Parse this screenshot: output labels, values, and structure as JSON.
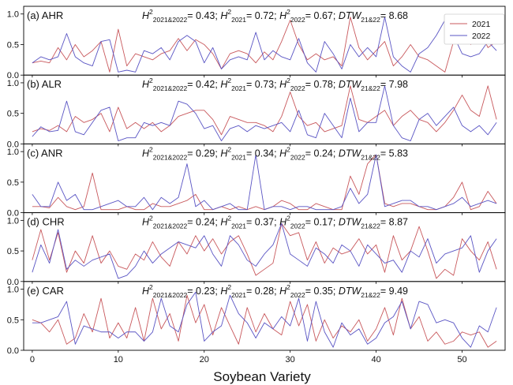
{
  "colors": {
    "series_2021": "#c8585c",
    "series_2022": "#5a55c4"
  },
  "chart_data": {
    "type": "line",
    "xlabel": "Soybean Variety",
    "xlim": [
      -1,
      55
    ],
    "xticks": [
      0,
      10,
      20,
      30,
      40,
      50
    ],
    "ylim": [
      0,
      1.1
    ],
    "yticks": [
      "0.0",
      "0.5",
      "1.0"
    ],
    "legend": {
      "placement": "top-right",
      "entries": [
        "2021",
        "2022"
      ]
    },
    "panels": [
      {
        "label": "(a) AHR",
        "stats": {
          "h2_both": "0.43",
          "h2_2021": "0.72",
          "h2_2022": "0.67",
          "dtw": "8.68"
        },
        "series": [
          {
            "name": "2021",
            "values": [
              0.2,
              0.23,
              0.2,
              0.45,
              0.25,
              0.5,
              0.3,
              0.4,
              0.55,
              0.05,
              0.75,
              0.15,
              0.35,
              0.3,
              0.25,
              0.35,
              0.4,
              0.6,
              0.4,
              0.58,
              0.5,
              0.35,
              0.1,
              0.35,
              0.4,
              0.35,
              0.2,
              0.38,
              0.25,
              0.55,
              0.9,
              0.5,
              0.25,
              0.35,
              0.25,
              0.3,
              0.15,
              0.95,
              0.45,
              0.25,
              0.4,
              0.55,
              0.15,
              0.3,
              0.5,
              0.3,
              0.25,
              0.15,
              0.05,
              0.55,
              0.9,
              0.5,
              0.75,
              0.45,
              0.55
            ]
          },
          {
            "name": "2022",
            "values": [
              0.2,
              0.3,
              0.25,
              0.3,
              0.68,
              0.3,
              0.2,
              0.15,
              0.55,
              0.58,
              0.05,
              0.08,
              0.05,
              0.4,
              0.35,
              0.45,
              0.25,
              0.55,
              0.65,
              0.55,
              0.2,
              0.45,
              0.1,
              0.25,
              0.3,
              0.25,
              0.7,
              0.25,
              0.4,
              0.3,
              0.25,
              0.6,
              0.2,
              0.05,
              0.55,
              0.35,
              0.1,
              0.5,
              0.3,
              0.45,
              0.3,
              0.95,
              0.3,
              0.15,
              0.05,
              0.35,
              0.45,
              0.65,
              0.9,
              0.65,
              0.35,
              0.3,
              0.35,
              0.55,
              0.4
            ]
          }
        ]
      },
      {
        "label": "(b) ALR",
        "stats": {
          "h2_both": "0.42",
          "h2_2021": "0.73",
          "h2_2022": "0.78",
          "dtw": "7.98"
        },
        "series": [
          {
            "name": "2021",
            "values": [
              0.2,
              0.25,
              0.22,
              0.3,
              0.2,
              0.45,
              0.35,
              0.4,
              0.5,
              0.2,
              0.6,
              0.25,
              0.35,
              0.25,
              0.35,
              0.2,
              0.3,
              0.45,
              0.5,
              0.55,
              0.55,
              0.4,
              0.15,
              0.45,
              0.4,
              0.35,
              0.35,
              0.3,
              0.2,
              0.45,
              0.85,
              0.45,
              0.3,
              0.35,
              0.2,
              0.25,
              0.3,
              0.95,
              0.4,
              0.35,
              0.45,
              0.55,
              0.3,
              0.45,
              0.55,
              0.4,
              0.35,
              0.2,
              0.35,
              0.55,
              0.8,
              0.55,
              0.45,
              0.95,
              0.4
            ]
          },
          {
            "name": "2022",
            "values": [
              0.12,
              0.28,
              0.2,
              0.22,
              0.7,
              0.2,
              0.15,
              0.35,
              0.55,
              0.6,
              0.05,
              0.1,
              0.1,
              0.35,
              0.3,
              0.35,
              0.3,
              0.7,
              0.65,
              0.5,
              0.25,
              0.3,
              0.05,
              0.25,
              0.3,
              0.2,
              0.3,
              0.25,
              0.3,
              0.35,
              0.2,
              0.55,
              0.15,
              0.1,
              0.5,
              0.3,
              0.1,
              0.75,
              0.2,
              0.35,
              0.35,
              0.95,
              0.3,
              0.1,
              0.05,
              0.4,
              0.5,
              0.3,
              0.45,
              0.6,
              0.3,
              0.2,
              0.3,
              0.15,
              0.35
            ]
          }
        ]
      },
      {
        "label": "(c) ANR",
        "stats": {
          "h2_both": "0.29",
          "h2_2021": "0.34",
          "h2_2022": "0.24",
          "dtw": "5.83"
        },
        "series": [
          {
            "name": "2021",
            "values": [
              0.1,
              0.1,
              0.08,
              0.25,
              0.1,
              0.05,
              0.1,
              0.65,
              0.05,
              0.05,
              0.05,
              0.1,
              0.05,
              0.05,
              0.15,
              0.1,
              0.1,
              0.15,
              0.2,
              0.3,
              0.05,
              0.05,
              0.1,
              0.05,
              0.1,
              0.05,
              0.1,
              0.05,
              0.1,
              0.2,
              0.15,
              0.05,
              0.05,
              0.15,
              0.1,
              0.05,
              0.05,
              0.6,
              0.3,
              0.8,
              0.95,
              0.15,
              0.1,
              0.15,
              0.15,
              0.1,
              0.05,
              0.05,
              0.1,
              0.25,
              0.5,
              0.05,
              0.1,
              0.35,
              0.15
            ]
          },
          {
            "name": "2022",
            "values": [
              0.3,
              0.1,
              0.1,
              0.5,
              0.2,
              0.3,
              0.05,
              0.05,
              0.1,
              0.15,
              0.2,
              0.1,
              0.1,
              0.25,
              0.05,
              0.25,
              0.15,
              0.25,
              0.8,
              0.1,
              0.2,
              0.05,
              0.1,
              0.15,
              0.05,
              0.05,
              0.95,
              0.05,
              0.1,
              0.1,
              0.05,
              0.1,
              0.1,
              0.05,
              0.05,
              0.05,
              0.1,
              0.4,
              0.15,
              0.3,
              0.95,
              0.1,
              0.15,
              0.2,
              0.2,
              0.1,
              0.1,
              0.05,
              0.1,
              0.15,
              0.25,
              0.1,
              0.15,
              0.2,
              0.15
            ]
          }
        ]
      },
      {
        "label": "(d) CHR",
        "stats": {
          "h2_both": "0.24",
          "h2_2021": "0.37",
          "h2_2022": "0.17",
          "dtw": "8.87"
        },
        "series": [
          {
            "name": "2021",
            "values": [
              0.35,
              0.85,
              0.35,
              0.8,
              0.15,
              0.5,
              0.3,
              0.75,
              0.3,
              0.5,
              0.25,
              0.2,
              0.45,
              0.35,
              0.65,
              0.4,
              0.25,
              0.65,
              0.45,
              0.75,
              0.5,
              0.7,
              0.45,
              0.65,
              0.75,
              0.45,
              0.1,
              0.2,
              0.3,
              0.95,
              0.75,
              0.8,
              0.35,
              0.65,
              0.3,
              0.55,
              0.45,
              0.5,
              0.7,
              0.45,
              0.6,
              0.15,
              0.75,
              0.35,
              0.5,
              0.9,
              0.5,
              0.05,
              0.2,
              0.1,
              0.7,
              0.5,
              0.35,
              0.65,
              0.2
            ]
          },
          {
            "name": "2022",
            "values": [
              0.15,
              0.6,
              0.3,
              0.85,
              0.2,
              0.35,
              0.25,
              0.35,
              0.4,
              0.45,
              0.05,
              0.1,
              0.25,
              0.5,
              0.3,
              0.45,
              0.55,
              0.65,
              0.6,
              0.55,
              0.75,
              0.45,
              0.25,
              0.75,
              0.6,
              0.35,
              0.25,
              0.45,
              0.6,
              0.95,
              0.45,
              0.35,
              0.25,
              0.55,
              0.45,
              0.3,
              0.6,
              0.5,
              0.25,
              0.6,
              0.45,
              0.3,
              0.35,
              0.15,
              0.5,
              0.4,
              0.7,
              0.3,
              0.45,
              0.5,
              0.55,
              0.75,
              0.15,
              0.5,
              0.7
            ]
          }
        ]
      },
      {
        "label": "(e) CAR",
        "stats": {
          "h2_both": "0.23",
          "h2_2021": "0.28",
          "h2_2022": "0.35",
          "dtw": "9.49"
        },
        "series": [
          {
            "name": "2021",
            "values": [
              0.5,
              0.45,
              0.3,
              0.5,
              0.1,
              0.2,
              0.6,
              0.3,
              0.85,
              0.2,
              0.45,
              0.2,
              0.7,
              0.15,
              0.85,
              0.35,
              0.6,
              0.15,
              0.9,
              0.45,
              0.75,
              0.25,
              0.7,
              0.4,
              0.1,
              0.7,
              0.3,
              0.6,
              0.35,
              0.25,
              0.8,
              0.4,
              0.75,
              0.15,
              0.5,
              0.2,
              0.4,
              0.3,
              0.5,
              0.15,
              0.35,
              0.7,
              0.25,
              0.85,
              0.35,
              0.55,
              0.15,
              0.3,
              0.1,
              0.15,
              0.3,
              0.25,
              0.3,
              0.05,
              0.15
            ]
          },
          {
            "name": "2022",
            "values": [
              0.45,
              0.45,
              0.5,
              0.55,
              0.8,
              0.1,
              0.4,
              0.35,
              0.3,
              0.3,
              0.2,
              0.3,
              0.3,
              0.15,
              0.3,
              0.85,
              0.4,
              0.3,
              0.75,
              0.95,
              0.15,
              0.3,
              0.4,
              0.9,
              0.6,
              0.45,
              0.2,
              0.45,
              0.35,
              0.55,
              0.4,
              0.85,
              0.15,
              0.8,
              0.3,
              0.05,
              0.45,
              0.25,
              0.35,
              0.1,
              0.2,
              0.45,
              0.55,
              0.8,
              0.35,
              0.8,
              0.75,
              0.45,
              0.5,
              0.45,
              0.2,
              0.05,
              0.4,
              0.3,
              0.7
            ]
          }
        ]
      }
    ]
  }
}
